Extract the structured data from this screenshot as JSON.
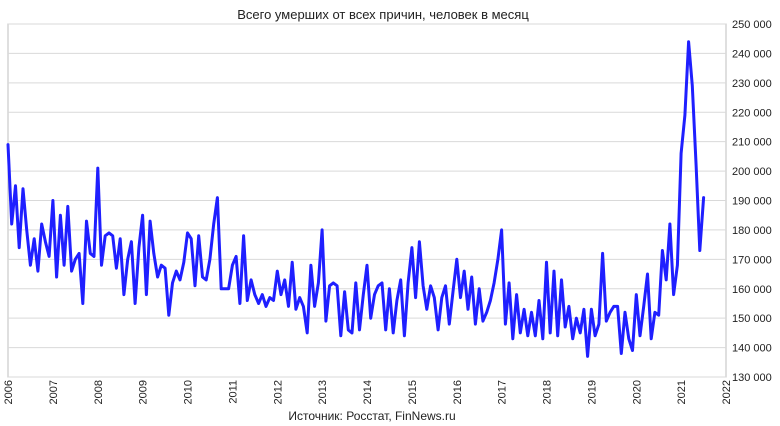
{
  "chart_data": {
    "type": "line",
    "title": "Всего умерших от всех причин, человек в месяц",
    "source": "Источник: Росстат, FinNews.ru",
    "xlabel": "",
    "ylabel": "",
    "ylim": [
      130000,
      250000
    ],
    "y_ticks": [
      130000,
      140000,
      150000,
      160000,
      170000,
      180000,
      190000,
      200000,
      210000,
      220000,
      230000,
      240000,
      250000
    ],
    "y_tick_labels": [
      "130 000",
      "140 000",
      "150 000",
      "160 000",
      "170 000",
      "180 000",
      "190 000",
      "200 000",
      "210 000",
      "220 000",
      "230 000",
      "240 000",
      "250 000"
    ],
    "x_range": [
      "2006-01",
      "2022-01"
    ],
    "x_tick_labels": [
      "2006",
      "2007",
      "2008",
      "2009",
      "2010",
      "2011",
      "2012",
      "2013",
      "2014",
      "2015",
      "2016",
      "2017",
      "2018",
      "2019",
      "2020",
      "2021",
      "2022"
    ],
    "grid": "horizontal",
    "color": "#1f1fff",
    "start": "2006-01",
    "frequency": "monthly",
    "values": [
      209000,
      182000,
      195000,
      174000,
      194000,
      180000,
      168000,
      177000,
      166000,
      182000,
      176000,
      171000,
      190000,
      164000,
      185000,
      168000,
      188000,
      166000,
      170000,
      172000,
      155000,
      183000,
      172000,
      171000,
      201000,
      168000,
      178000,
      179000,
      178000,
      167000,
      177000,
      158000,
      170000,
      176000,
      155000,
      174000,
      185000,
      158000,
      183000,
      172000,
      164000,
      168000,
      167000,
      151000,
      162000,
      166000,
      163000,
      169000,
      179000,
      177000,
      161000,
      178000,
      164000,
      163000,
      170000,
      182000,
      191000,
      160000,
      160000,
      160000,
      168000,
      171000,
      155000,
      178000,
      156000,
      163000,
      158000,
      155000,
      158000,
      154000,
      157000,
      156000,
      166000,
      158000,
      163000,
      154000,
      169000,
      153000,
      157000,
      154000,
      145000,
      168000,
      154000,
      162000,
      180000,
      149000,
      161000,
      162000,
      161000,
      144000,
      159000,
      146000,
      145000,
      162000,
      146000,
      158000,
      168000,
      150000,
      158000,
      161000,
      162000,
      146000,
      160000,
      145000,
      156000,
      163000,
      144000,
      162000,
      174000,
      157000,
      176000,
      161000,
      153000,
      161000,
      157000,
      146000,
      157000,
      161000,
      148000,
      159000,
      170000,
      157000,
      166000,
      153000,
      164000,
      148000,
      160000,
      149000,
      152000,
      156000,
      162000,
      170000,
      180000,
      148000,
      162000,
      143000,
      158000,
      145000,
      153000,
      144000,
      152000,
      144000,
      156000,
      143000,
      169000,
      145000,
      166000,
      144000,
      163000,
      147000,
      154000,
      143000,
      150000,
      145000,
      153000,
      137000,
      153000,
      144000,
      148000,
      172000,
      149000,
      152000,
      154000,
      154000,
      138000,
      152000,
      143000,
      139000,
      158000,
      144000,
      154000,
      165000,
      143000,
      152000,
      151000,
      173000,
      163000,
      182000,
      158000,
      168000,
      206000,
      219000,
      244000,
      229000,
      202000,
      173000,
      191000
    ]
  }
}
